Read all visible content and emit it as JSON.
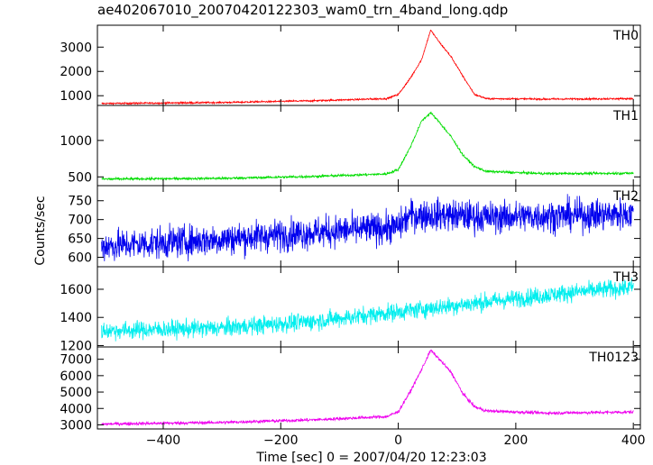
{
  "title": "ae402067010_20070420122303_wam0_trn_4band_long.qdp",
  "xlabel": "Time [sec] 0 = 2007/04/20 12:23:03",
  "ylabel": "Counts/sec",
  "chart_data": {
    "type": "line",
    "x_range": [
      -512,
      412
    ],
    "x_ticks": [
      -400,
      -200,
      0,
      200,
      400
    ],
    "x_tick_labels": [
      "−400",
      "−200",
      "0",
      "200",
      "400"
    ],
    "panels": [
      {
        "name": "TH0",
        "color": "#ff0000",
        "ylim": [
          600,
          3900
        ],
        "y_ticks": [
          1000,
          2000,
          3000
        ],
        "noise": 25,
        "curve": [
          [
            -500,
            680
          ],
          [
            -300,
            720
          ],
          [
            -150,
            790
          ],
          [
            -20,
            880
          ],
          [
            0,
            1050
          ],
          [
            20,
            1700
          ],
          [
            40,
            2500
          ],
          [
            55,
            3700
          ],
          [
            70,
            3200
          ],
          [
            90,
            2600
          ],
          [
            110,
            1800
          ],
          [
            130,
            1050
          ],
          [
            150,
            880
          ],
          [
            250,
            860
          ],
          [
            400,
            880
          ]
        ]
      },
      {
        "name": "TH1",
        "color": "#00dd00",
        "ylim": [
          380,
          1480
        ],
        "y_ticks": [
          500,
          1000
        ],
        "noise": 12,
        "curve": [
          [
            -500,
            470
          ],
          [
            -300,
            480
          ],
          [
            -150,
            505
          ],
          [
            -20,
            540
          ],
          [
            0,
            600
          ],
          [
            20,
            900
          ],
          [
            40,
            1270
          ],
          [
            55,
            1380
          ],
          [
            70,
            1250
          ],
          [
            90,
            1050
          ],
          [
            110,
            800
          ],
          [
            130,
            640
          ],
          [
            150,
            575
          ],
          [
            250,
            545
          ],
          [
            400,
            550
          ]
        ]
      },
      {
        "name": "TH2",
        "color": "#0000ee",
        "ylim": [
          575,
          790
        ],
        "y_ticks": [
          600,
          650,
          700,
          750
        ],
        "noise": 30,
        "curve": [
          [
            -500,
            630
          ],
          [
            -300,
            648
          ],
          [
            -150,
            665
          ],
          [
            0,
            680
          ],
          [
            20,
            712
          ],
          [
            80,
            712
          ],
          [
            150,
            706
          ],
          [
            400,
            715
          ]
        ]
      },
      {
        "name": "TH3",
        "color": "#00eeee",
        "ylim": [
          1190,
          1760
        ],
        "y_ticks": [
          1200,
          1400,
          1600
        ],
        "noise": 45,
        "curve": [
          [
            -500,
            1305
          ],
          [
            -300,
            1325
          ],
          [
            -150,
            1370
          ],
          [
            0,
            1440
          ],
          [
            150,
            1510
          ],
          [
            300,
            1580
          ],
          [
            400,
            1615
          ]
        ]
      },
      {
        "name": "TH0123",
        "color": "#ee00ee",
        "ylim": [
          2750,
          7750
        ],
        "y_ticks": [
          3000,
          4000,
          5000,
          6000,
          7000
        ],
        "noise": 70,
        "curve": [
          [
            -500,
            3050
          ],
          [
            -300,
            3150
          ],
          [
            -150,
            3300
          ],
          [
            -20,
            3500
          ],
          [
            0,
            3800
          ],
          [
            20,
            5000
          ],
          [
            40,
            6400
          ],
          [
            55,
            7550
          ],
          [
            70,
            7000
          ],
          [
            90,
            6200
          ],
          [
            110,
            4900
          ],
          [
            130,
            4100
          ],
          [
            150,
            3850
          ],
          [
            250,
            3720
          ],
          [
            400,
            3780
          ]
        ]
      }
    ]
  }
}
